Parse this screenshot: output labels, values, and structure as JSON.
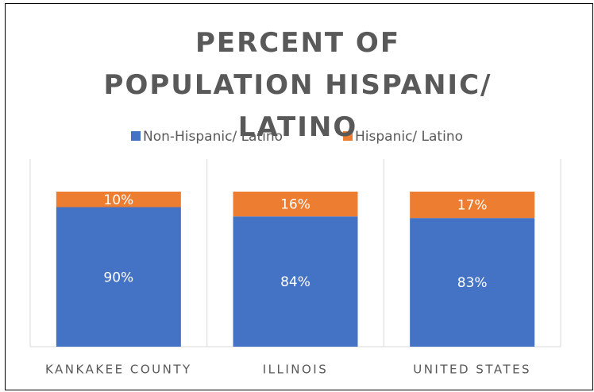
{
  "chart_data": {
    "type": "stacked_bar",
    "title": "PERCENT OF POPULATION HISPANIC/ LATINO",
    "categories": [
      "KANKAKEE COUNTY",
      "ILLINOIS",
      "UNITED STATES"
    ],
    "series": [
      {
        "name": "Non-Hispanic/ Latino",
        "color": "#4472c4",
        "values": [
          90,
          84,
          83
        ],
        "value_labels": [
          "90%",
          "84%",
          "83%"
        ]
      },
      {
        "name": "Hispanic/ Latino",
        "color": "#ed7d31",
        "values": [
          10,
          16,
          17
        ],
        "value_labels": [
          "10%",
          "16%",
          "17%"
        ]
      }
    ],
    "ylim": [
      0,
      100
    ],
    "legend": "top"
  }
}
